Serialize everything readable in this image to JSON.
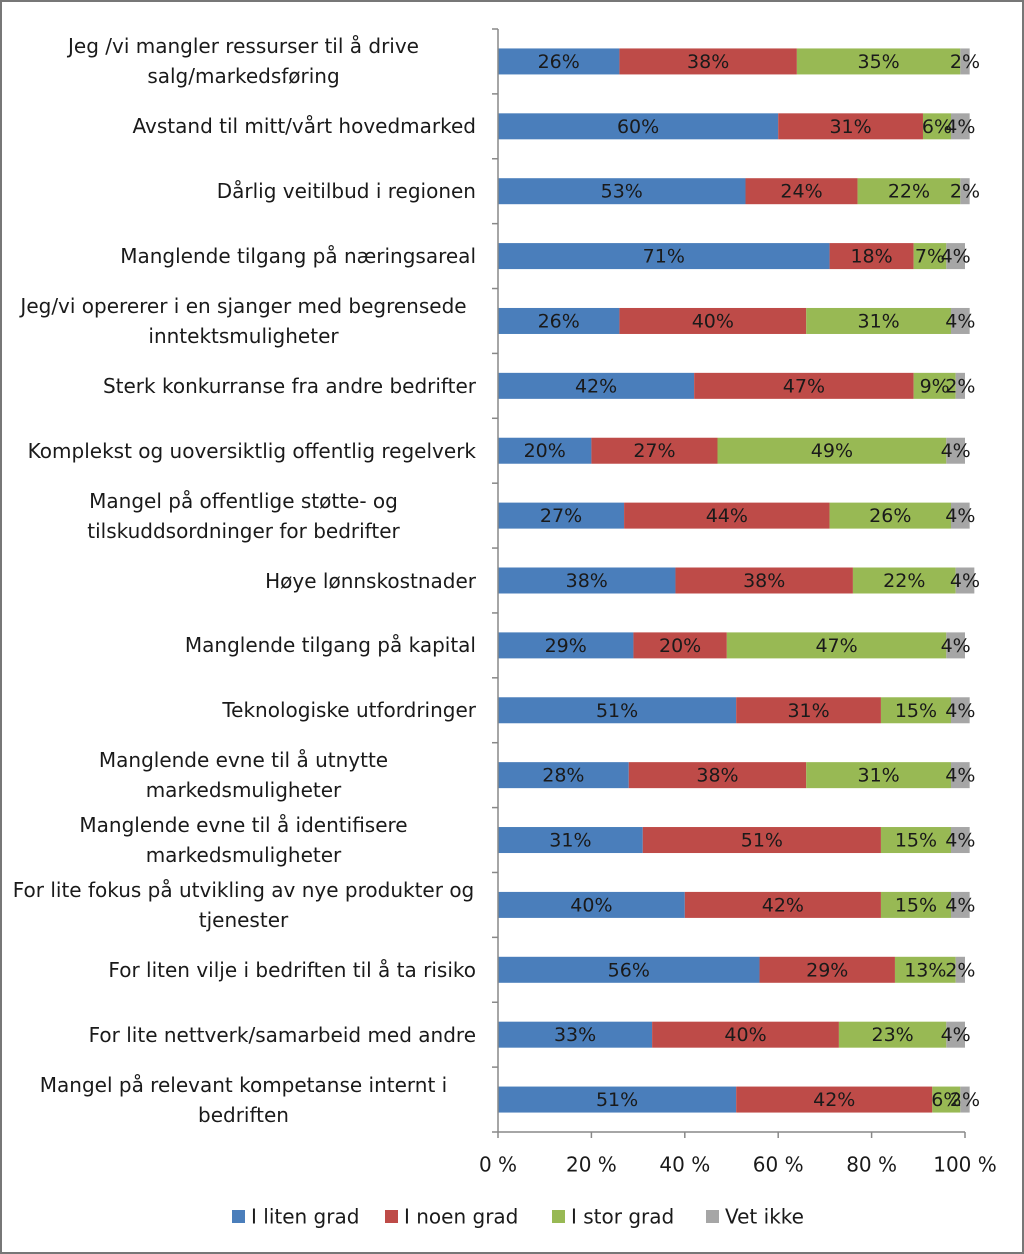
{
  "chart_data": {
    "type": "stacked-bar-horizontal",
    "categories": [
      "Jeg /vi mangler ressurser til å drive salg/markedsføring",
      "Avstand til mitt/vårt hovedmarked",
      "Dårlig veitilbud i regionen",
      "Manglende tilgang på næringsareal",
      "Jeg/vi opererer i en sjanger med begrensede inntektsmuligheter",
      "Sterk konkurranse fra andre bedrifter",
      "Komplekst og uoversiktlig offentlig regelverk",
      "Mangel på offentlige støtte- og tilskuddsordninger for bedrifter",
      "Høye lønnskostnader",
      "Manglende tilgang på kapital",
      "Teknologiske utfordringer",
      "Manglende evne til å utnytte markedsmuligheter",
      "Manglende evne til å identifisere markedsmuligheter",
      "For lite fokus på utvikling av nye produkter og tjenester",
      "For liten vilje i bedriften til å ta risiko",
      "For lite nettverk/samarbeid med andre",
      "Mangel på relevant kompetanse internt i bedriften"
    ],
    "series": [
      {
        "name": "I liten grad",
        "color": "#4a7ebb",
        "values": [
          26,
          60,
          53,
          71,
          26,
          42,
          20,
          27,
          38,
          29,
          51,
          28,
          31,
          40,
          56,
          33,
          51
        ],
        "value_labels": [
          "26%",
          "60%",
          "53%",
          "71%",
          "26%",
          "42%",
          "20%",
          "27%",
          "38%",
          "29%",
          "51%",
          "28%",
          "31%",
          "40%",
          "56%",
          "33%",
          "51%"
        ]
      },
      {
        "name": "I noen grad",
        "color": "#be4b48",
        "values": [
          38,
          31,
          24,
          18,
          40,
          47,
          27,
          44,
          38,
          20,
          31,
          38,
          51,
          42,
          29,
          40,
          42
        ],
        "value_labels": [
          "38%",
          "31%",
          "24%",
          "18%",
          "40%",
          "47%",
          "27%",
          "44%",
          "38%",
          "20%",
          "31%",
          "38%",
          "51%",
          "42%",
          "29%",
          "40%",
          "42%"
        ]
      },
      {
        "name": "I stor grad",
        "color": "#98b954",
        "values": [
          35,
          6,
          22,
          7,
          31,
          9,
          49,
          26,
          22,
          47,
          15,
          31,
          15,
          15,
          13,
          23,
          6
        ],
        "value_labels": [
          "35%",
          "6%",
          "22%",
          "7%",
          "31%",
          "9%",
          "49%",
          "26%",
          "22%",
          "47%",
          "15%",
          "31%",
          "15%",
          "15%",
          "13%",
          "23%",
          "6%"
        ]
      },
      {
        "name": "Vet ikke",
        "color": "#a6a6a6",
        "values": [
          2,
          4,
          2,
          4,
          4,
          2,
          4,
          4,
          4,
          4,
          4,
          4,
          4,
          4,
          2,
          4,
          2
        ],
        "value_labels": [
          "2%",
          "4%",
          "2%",
          "4%",
          "4%",
          "2%",
          "4%",
          "4%",
          "4%",
          "4%",
          "4%",
          "4%",
          "4%",
          "4%",
          "2%",
          "4%",
          "2%"
        ]
      }
    ],
    "xlim": [
      0,
      100
    ],
    "xticks": [
      {
        "value": 0,
        "label": "0 %"
      },
      {
        "value": 20,
        "label": "20 %"
      },
      {
        "value": 40,
        "label": "40 %"
      },
      {
        "value": 60,
        "label": "60 %"
      },
      {
        "value": 80,
        "label": "80 %"
      },
      {
        "value": 100,
        "label": "100 %"
      }
    ],
    "legend": "bottom"
  }
}
